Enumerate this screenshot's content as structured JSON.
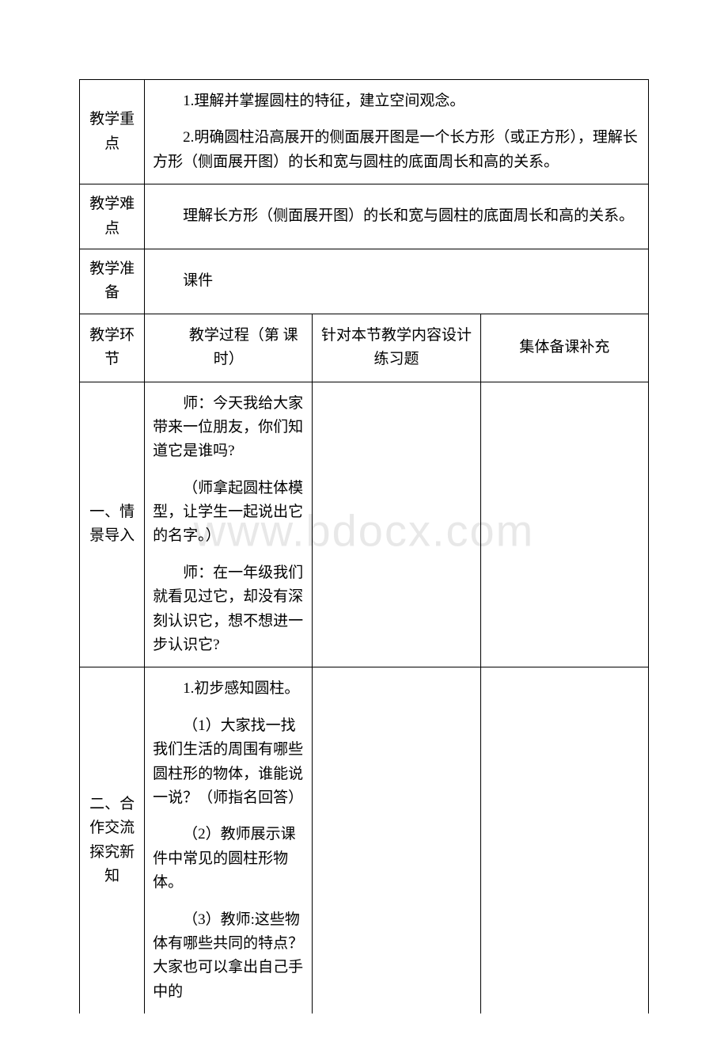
{
  "watermark": "www.bdocx.com",
  "rows": {
    "key_points": {
      "label": "教学重点",
      "para1": "1.理解并掌握圆柱的特征，建立空间观念。",
      "para2": "2.明确圆柱沿高展开的侧面展开图是一个长方形（或正方形），理解长方形（侧面展开图）的长和宽与圆柱的底面周长和高的关系。"
    },
    "difficulty": {
      "label": "教学难点",
      "content": "理解长方形（侧面展开图）的长和宽与圆柱的底面周长和高的关系。"
    },
    "preparation": {
      "label": "教学准备",
      "content": "课件"
    },
    "header": {
      "label": "教学环节",
      "col1": "教学过程（第  课时）",
      "col2": "针对本节教学内容设计练习题",
      "col3": "集体备课补充"
    },
    "section1": {
      "label": "一、情景导入",
      "p1": "师：今天我给大家带来一位朋友，你们知道它是谁吗?",
      "p2": "（师拿起圆柱体模型，让学生一起说出它的名字。）",
      "p3": "师：在一年级我们就看见过它，却没有深刻认识它，想不想进一步认识它?"
    },
    "section2": {
      "label": "二、合作交流探究新知",
      "p1": "1.初步感知圆柱。",
      "p2": "（1）大家找一找我们生活的周围有哪些圆柱形的物体，谁能说一说？（师指名回答）",
      "p3": "（2）教师展示课件中常见的圆柱形物体。",
      "p4": "（3）教师:这些物体有哪些共同的特点？大家也可以拿出自己手中的"
    }
  }
}
